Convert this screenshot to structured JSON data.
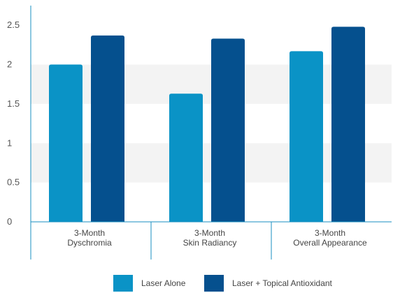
{
  "chart_data": {
    "type": "bar",
    "title": "",
    "xlabel": "",
    "ylabel": "",
    "ylim": [
      0,
      2.75
    ],
    "yticks": [
      "0",
      "0.5",
      "1",
      "1.5",
      "2",
      "2.5"
    ],
    "categories": [
      [
        "3-Month",
        "Dyschromia"
      ],
      [
        "3-Month",
        "Skin Radiancy"
      ],
      [
        "3-Month",
        "Overall Appearance"
      ]
    ],
    "series": [
      {
        "name": "Laser Alone",
        "color": "#0a93c6",
        "values": [
          2.0,
          1.63,
          2.17
        ]
      },
      {
        "name": "Laser + Topical Antioxidant",
        "color": "#05508e",
        "values": [
          2.37,
          2.33,
          2.48
        ]
      }
    ],
    "grid": "alternating-bands",
    "legend": "bottom"
  }
}
